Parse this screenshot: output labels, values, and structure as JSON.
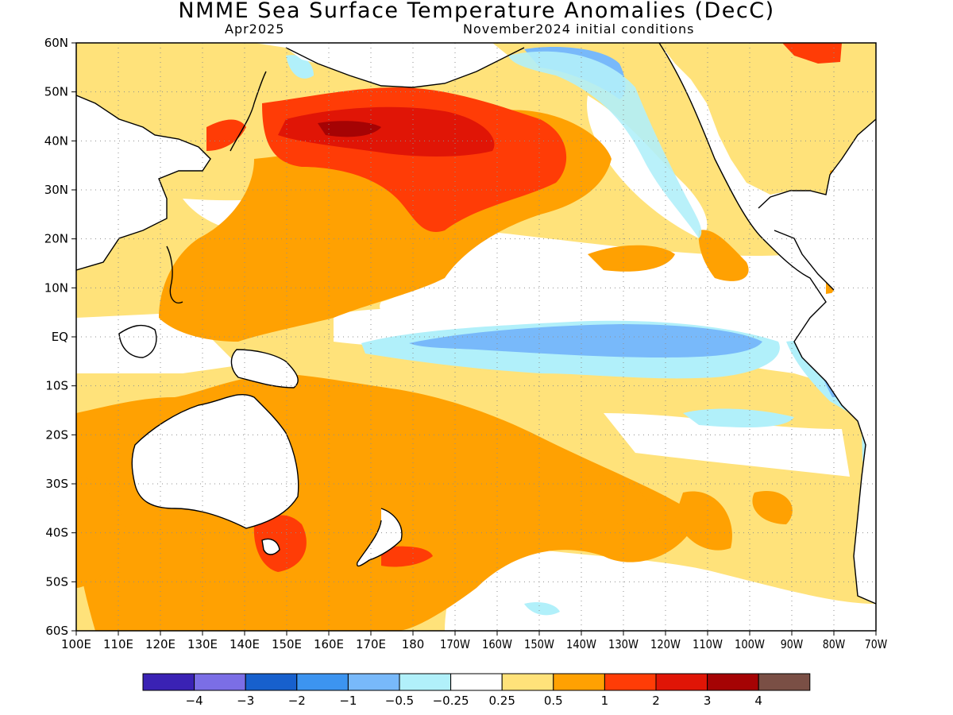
{
  "title": "NMME Sea Surface Temperature Anomalies (DecC)",
  "valid_month": "Apr2025",
  "initial_conditions": "November2024 initial conditions",
  "lat_labels": [
    "60N",
    "50N",
    "40N",
    "30N",
    "20N",
    "10N",
    "EQ",
    "10S",
    "20S",
    "30S",
    "40S",
    "50S",
    "60S"
  ],
  "lon_labels": [
    "100E",
    "110E",
    "120E",
    "130E",
    "140E",
    "150E",
    "160E",
    "170E",
    "180",
    "170W",
    "160W",
    "150W",
    "140W",
    "130W",
    "120W",
    "110W",
    "100W",
    "90W",
    "80W",
    "70W"
  ],
  "colorbar": {
    "colors": [
      "#3a22b4",
      "#7b6ee6",
      "#1760cd",
      "#3c94f0",
      "#78b9fa",
      "#b1f0fa",
      "#ffffff",
      "#ffe27a",
      "#ffa102",
      "#ff3c06",
      "#e01506",
      "#a50304",
      "#7a4f45"
    ],
    "labels": [
      "−4",
      "−3",
      "−2",
      "−1",
      "−0.5",
      "−0.25",
      "0.25",
      "0.5",
      "1",
      "2",
      "3",
      "4"
    ]
  },
  "colors": {
    "land": "#ffffff",
    "coast": "#000000",
    "grid": "#8f8f8f",
    "frame": "#000000"
  }
}
